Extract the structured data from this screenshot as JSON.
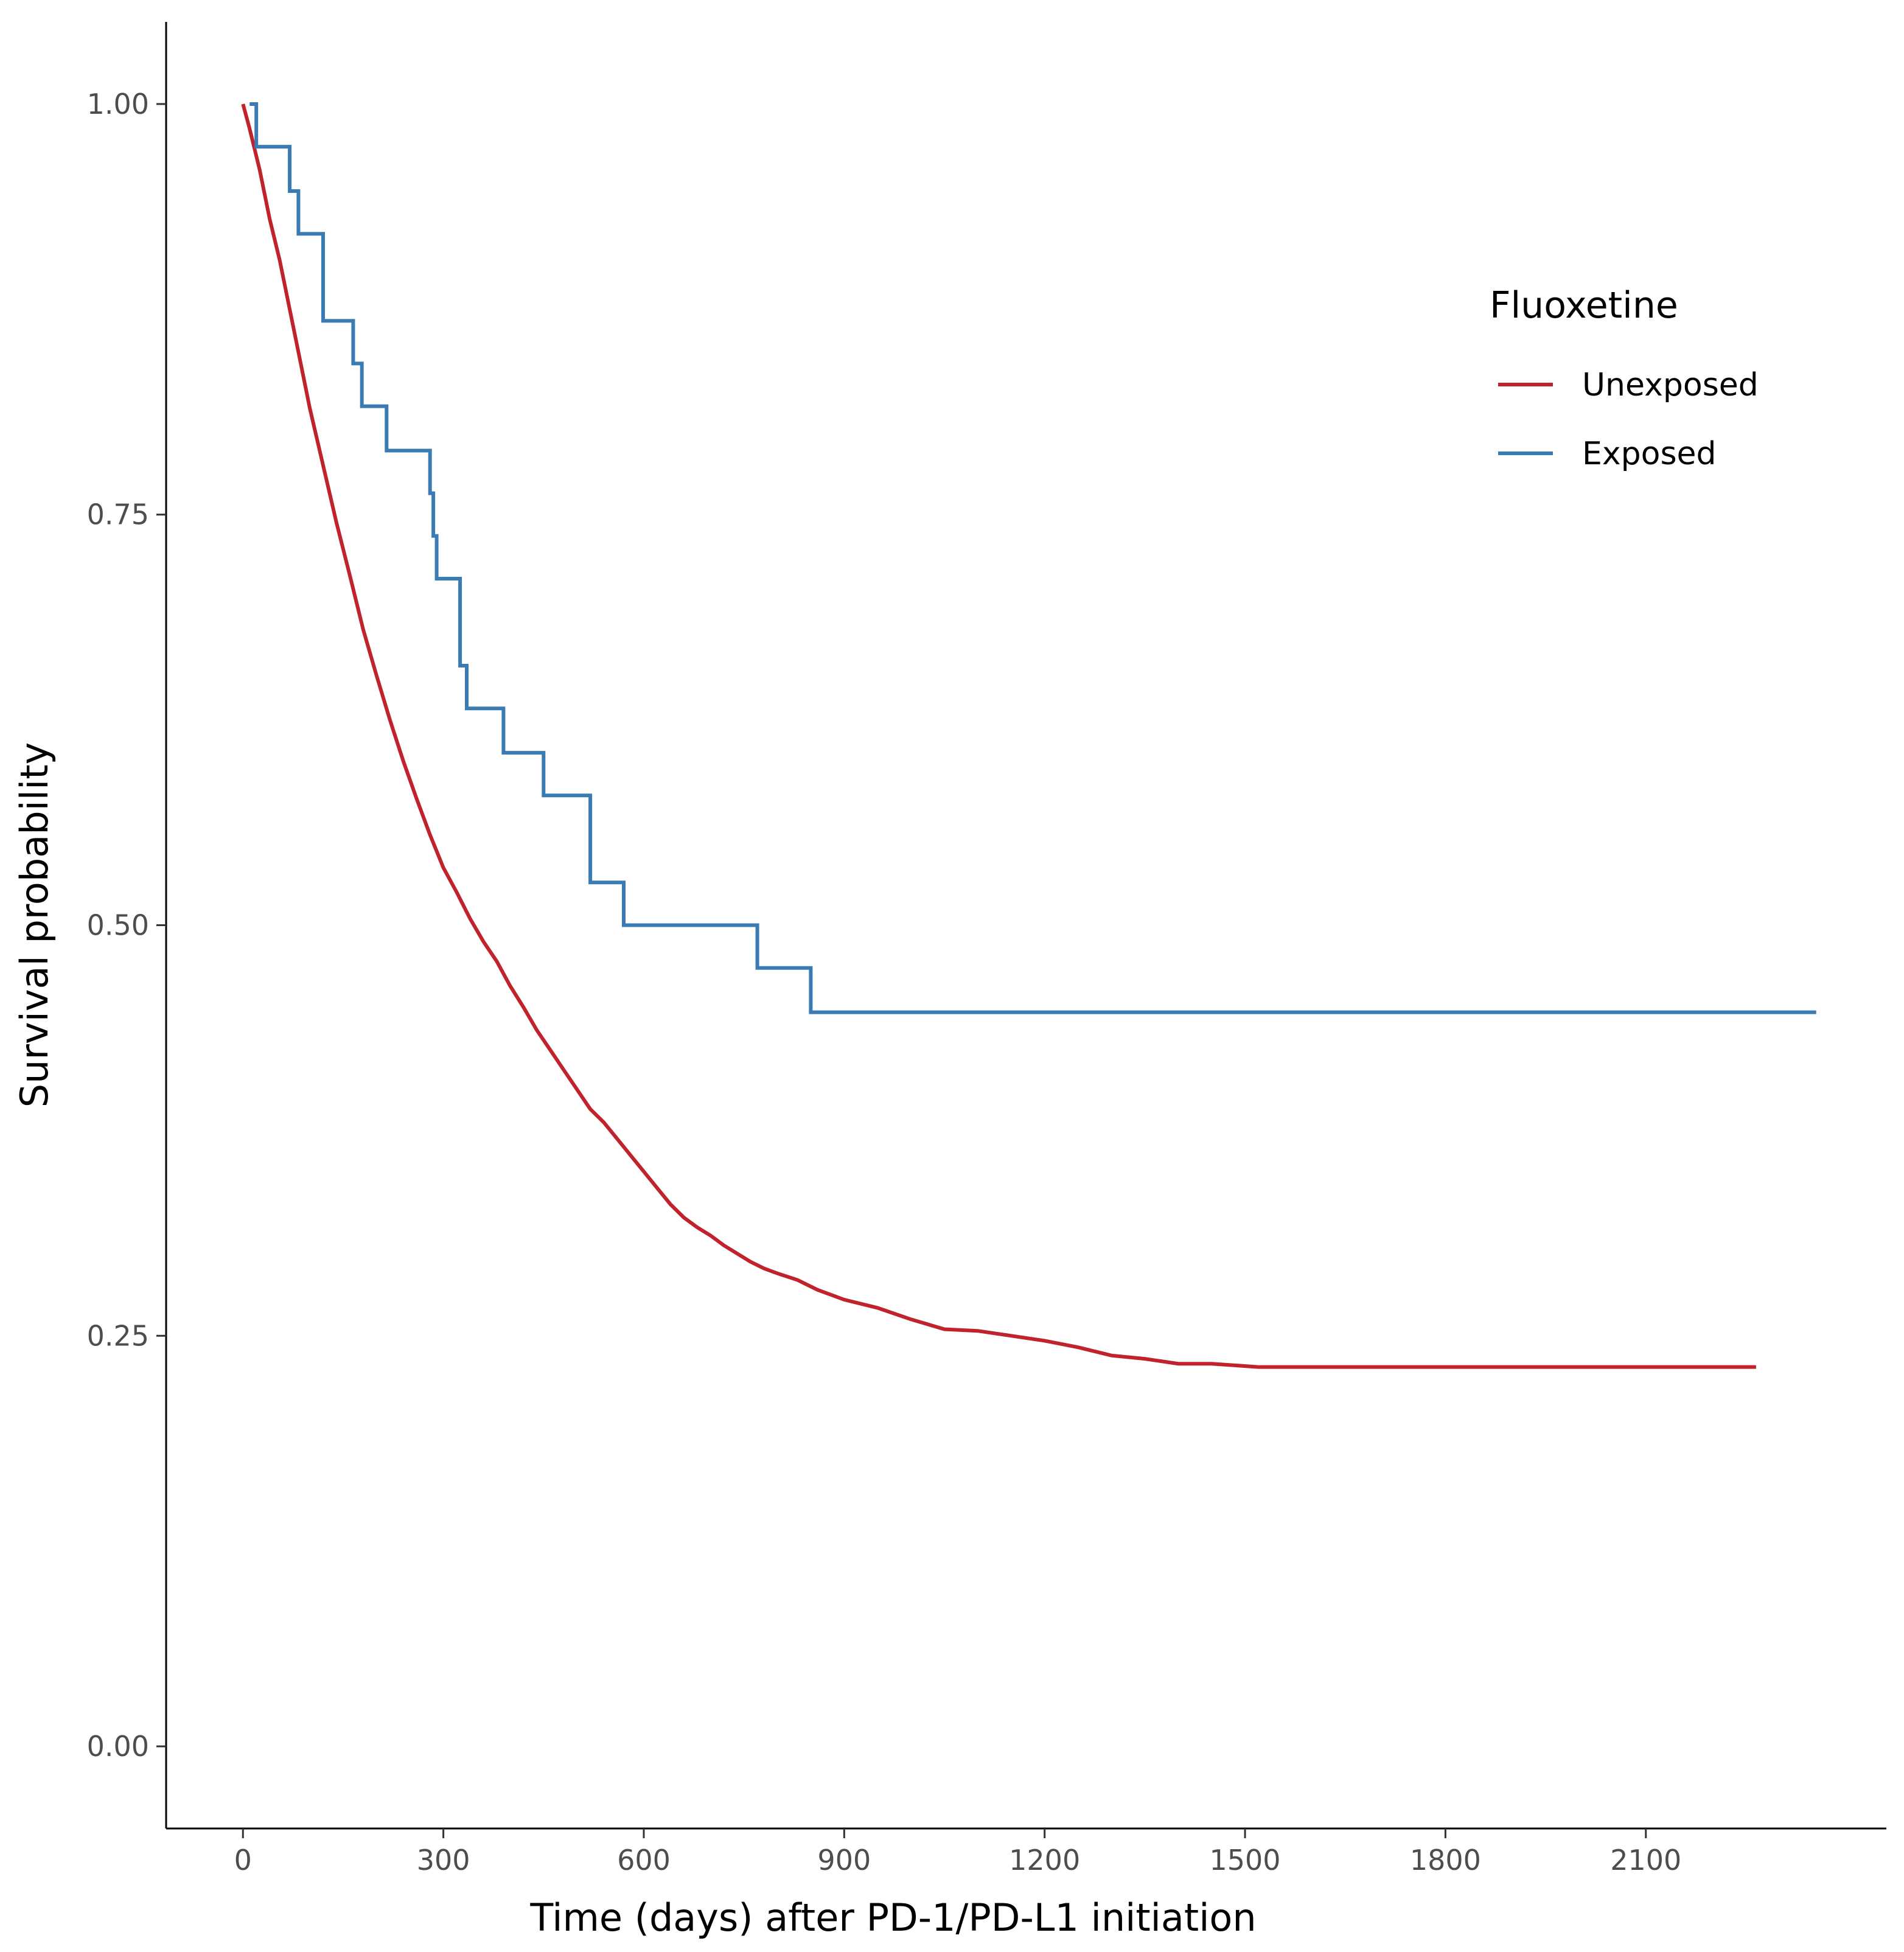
{
  "chart_data": {
    "type": "line",
    "title": "",
    "xlabel": "Time (days) after PD-1/PD-L1 initiation",
    "ylabel": "Survival probability",
    "xlim": [
      -115,
      2460
    ],
    "ylim": [
      -0.05,
      1.05
    ],
    "x_ticks": [
      0,
      300,
      600,
      900,
      1200,
      1500,
      1800,
      2100
    ],
    "x_tick_labels": [
      "0",
      "300",
      "600",
      "900",
      "1200",
      "1500",
      "1800",
      "2100"
    ],
    "y_ticks": [
      0.0,
      0.25,
      0.5,
      0.75,
      1.0
    ],
    "y_tick_labels": [
      "0.00",
      "0.25",
      "0.50",
      "0.75",
      "1.00"
    ],
    "grid": false,
    "legend": {
      "title": "Fluoxetine",
      "position": "top-right",
      "entries": [
        "Unexposed",
        "Exposed"
      ]
    },
    "series": [
      {
        "name": "Unexposed",
        "color": "#c0232b",
        "step": false,
        "points": [
          [
            0,
            1.0
          ],
          [
            10,
            0.985
          ],
          [
            25,
            0.96
          ],
          [
            40,
            0.93
          ],
          [
            55,
            0.905
          ],
          [
            70,
            0.875
          ],
          [
            85,
            0.845
          ],
          [
            100,
            0.815
          ],
          [
            120,
            0.78
          ],
          [
            140,
            0.745
          ],
          [
            160,
            0.713
          ],
          [
            180,
            0.68
          ],
          [
            200,
            0.652
          ],
          [
            220,
            0.625
          ],
          [
            240,
            0.6
          ],
          [
            260,
            0.577
          ],
          [
            280,
            0.555
          ],
          [
            300,
            0.535
          ],
          [
            320,
            0.52
          ],
          [
            340,
            0.504
          ],
          [
            360,
            0.49
          ],
          [
            380,
            0.478
          ],
          [
            400,
            0.463
          ],
          [
            420,
            0.45
          ],
          [
            440,
            0.436
          ],
          [
            460,
            0.424
          ],
          [
            480,
            0.412
          ],
          [
            500,
            0.4
          ],
          [
            520,
            0.388
          ],
          [
            540,
            0.38
          ],
          [
            560,
            0.37
          ],
          [
            580,
            0.36
          ],
          [
            600,
            0.35
          ],
          [
            620,
            0.34
          ],
          [
            640,
            0.33
          ],
          [
            660,
            0.322
          ],
          [
            680,
            0.316
          ],
          [
            700,
            0.311
          ],
          [
            720,
            0.305
          ],
          [
            740,
            0.3
          ],
          [
            760,
            0.295
          ],
          [
            780,
            0.291
          ],
          [
            800,
            0.288
          ],
          [
            830,
            0.284
          ],
          [
            860,
            0.278
          ],
          [
            900,
            0.272
          ],
          [
            950,
            0.267
          ],
          [
            1000,
            0.26
          ],
          [
            1050,
            0.254
          ],
          [
            1100,
            0.253
          ],
          [
            1150,
            0.25
          ],
          [
            1200,
            0.247
          ],
          [
            1250,
            0.243
          ],
          [
            1300,
            0.238
          ],
          [
            1350,
            0.236
          ],
          [
            1400,
            0.233
          ],
          [
            1450,
            0.233
          ],
          [
            1520,
            0.231
          ],
          [
            1600,
            0.231
          ],
          [
            1800,
            0.231
          ],
          [
            2000,
            0.231
          ],
          [
            2265,
            0.231
          ]
        ]
      },
      {
        "name": "Exposed",
        "color": "#3b7bb3",
        "step": true,
        "points": [
          [
            10,
            1.0
          ],
          [
            20,
            0.974
          ],
          [
            70,
            0.947
          ],
          [
            83,
            0.921
          ],
          [
            120,
            0.868
          ],
          [
            165,
            0.842
          ],
          [
            178,
            0.816
          ],
          [
            215,
            0.789
          ],
          [
            280,
            0.763
          ],
          [
            285,
            0.737
          ],
          [
            290,
            0.711
          ],
          [
            325,
            0.658
          ],
          [
            335,
            0.632
          ],
          [
            390,
            0.605
          ],
          [
            450,
            0.579
          ],
          [
            520,
            0.526
          ],
          [
            570,
            0.5
          ],
          [
            770,
            0.474
          ],
          [
            850,
            0.447
          ],
          [
            2355,
            0.447
          ]
        ]
      }
    ]
  }
}
